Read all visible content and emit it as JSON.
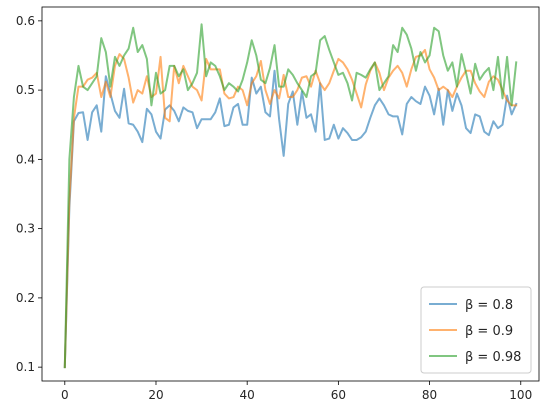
{
  "chart_data": {
    "type": "line",
    "title": "",
    "xlabel": "",
    "ylabel": "",
    "xlim": [
      -5,
      104
    ],
    "ylim": [
      0.08,
      0.62
    ],
    "x_ticks": [
      0,
      20,
      40,
      60,
      80,
      100
    ],
    "y_ticks": [
      0.1,
      0.2,
      0.3,
      0.4,
      0.5,
      0.6
    ],
    "grid": false,
    "legend_placement": "lower-right",
    "x": [
      0,
      1,
      2,
      3,
      4,
      5,
      6,
      7,
      8,
      9,
      10,
      11,
      12,
      13,
      14,
      15,
      16,
      17,
      18,
      19,
      20,
      21,
      22,
      23,
      24,
      25,
      26,
      27,
      28,
      29,
      30,
      31,
      32,
      33,
      34,
      35,
      36,
      37,
      38,
      39,
      40,
      41,
      42,
      43,
      44,
      45,
      46,
      47,
      48,
      49,
      50,
      51,
      52,
      53,
      54,
      55,
      56,
      57,
      58,
      59,
      60,
      61,
      62,
      63,
      64,
      65,
      66,
      67,
      68,
      69,
      70,
      71,
      72,
      73,
      74,
      75,
      76,
      77,
      78,
      79,
      80,
      81,
      82,
      83,
      84,
      85,
      86,
      87,
      88,
      89,
      90,
      91,
      92,
      93,
      94,
      95,
      96,
      97,
      98,
      99
    ],
    "series": [
      {
        "name": "β = 0.8",
        "legend_label": "β = 0.8",
        "color": "#1f77b4",
        "values": [
          0.1,
          0.33,
          0.455,
          0.467,
          0.468,
          0.428,
          0.468,
          0.478,
          0.44,
          0.52,
          0.495,
          0.47,
          0.46,
          0.502,
          0.452,
          0.45,
          0.44,
          0.425,
          0.473,
          0.465,
          0.44,
          0.43,
          0.472,
          0.478,
          0.47,
          0.455,
          0.475,
          0.47,
          0.468,
          0.445,
          0.458,
          0.458,
          0.458,
          0.468,
          0.488,
          0.448,
          0.45,
          0.475,
          0.48,
          0.45,
          0.45,
          0.518,
          0.495,
          0.505,
          0.468,
          0.462,
          0.528,
          0.458,
          0.405,
          0.48,
          0.498,
          0.45,
          0.498,
          0.46,
          0.465,
          0.44,
          0.51,
          0.428,
          0.43,
          0.45,
          0.43,
          0.445,
          0.438,
          0.428,
          0.428,
          0.432,
          0.44,
          0.46,
          0.478,
          0.488,
          0.478,
          0.465,
          0.462,
          0.462,
          0.436,
          0.48,
          0.49,
          0.484,
          0.48,
          0.505,
          0.492,
          0.465,
          0.502,
          0.45,
          0.5,
          0.47,
          0.495,
          0.478,
          0.445,
          0.438,
          0.465,
          0.462,
          0.44,
          0.435,
          0.455,
          0.445,
          0.45,
          0.492,
          0.465,
          0.48
        ]
      },
      {
        "name": "β = 0.9",
        "legend_label": "β = 0.9",
        "color": "#ff7f0e",
        "values": [
          0.1,
          0.34,
          0.46,
          0.505,
          0.505,
          0.515,
          0.518,
          0.525,
          0.49,
          0.512,
          0.49,
          0.535,
          0.552,
          0.545,
          0.518,
          0.482,
          0.5,
          0.495,
          0.52,
          0.49,
          0.495,
          0.548,
          0.46,
          0.455,
          0.535,
          0.51,
          0.535,
          0.52,
          0.505,
          0.5,
          0.485,
          0.545,
          0.53,
          0.53,
          0.53,
          0.495,
          0.488,
          0.49,
          0.505,
          0.5,
          0.478,
          0.51,
          0.52,
          0.542,
          0.5,
          0.48,
          0.5,
          0.488,
          0.522,
          0.49,
          0.49,
          0.5,
          0.518,
          0.52,
          0.505,
          0.528,
          0.51,
          0.5,
          0.51,
          0.528,
          0.545,
          0.54,
          0.53,
          0.515,
          0.495,
          0.475,
          0.508,
          0.528,
          0.54,
          0.525,
          0.5,
          0.518,
          0.528,
          0.535,
          0.525,
          0.505,
          0.53,
          0.548,
          0.55,
          0.558,
          0.53,
          0.518,
          0.5,
          0.505,
          0.5,
          0.49,
          0.505,
          0.518,
          0.528,
          0.528,
          0.51,
          0.498,
          0.49,
          0.512,
          0.52,
          0.515,
          0.5,
          0.485,
          0.478,
          0.478
        ]
      },
      {
        "name": "β = 0.98",
        "legend_label": "β = 0.98",
        "color": "#2ca02c",
        "values": [
          0.1,
          0.4,
          0.49,
          0.535,
          0.505,
          0.5,
          0.51,
          0.52,
          0.575,
          0.555,
          0.505,
          0.548,
          0.535,
          0.55,
          0.56,
          0.59,
          0.555,
          0.565,
          0.545,
          0.478,
          0.525,
          0.495,
          0.5,
          0.535,
          0.535,
          0.52,
          0.53,
          0.5,
          0.51,
          0.525,
          0.595,
          0.52,
          0.54,
          0.535,
          0.52,
          0.5,
          0.51,
          0.505,
          0.498,
          0.515,
          0.54,
          0.572,
          0.55,
          0.515,
          0.51,
          0.532,
          0.565,
          0.505,
          0.505,
          0.53,
          0.522,
          0.51,
          0.5,
          0.49,
          0.52,
          0.525,
          0.572,
          0.578,
          0.558,
          0.54,
          0.522,
          0.525,
          0.51,
          0.485,
          0.525,
          0.522,
          0.518,
          0.53,
          0.54,
          0.5,
          0.51,
          0.52,
          0.565,
          0.555,
          0.59,
          0.58,
          0.56,
          0.528,
          0.555,
          0.54,
          0.55,
          0.59,
          0.585,
          0.55,
          0.528,
          0.54,
          0.505,
          0.552,
          0.525,
          0.495,
          0.538,
          0.515,
          0.525,
          0.532,
          0.5,
          0.548,
          0.488,
          0.548,
          0.478,
          0.54
        ]
      }
    ]
  }
}
